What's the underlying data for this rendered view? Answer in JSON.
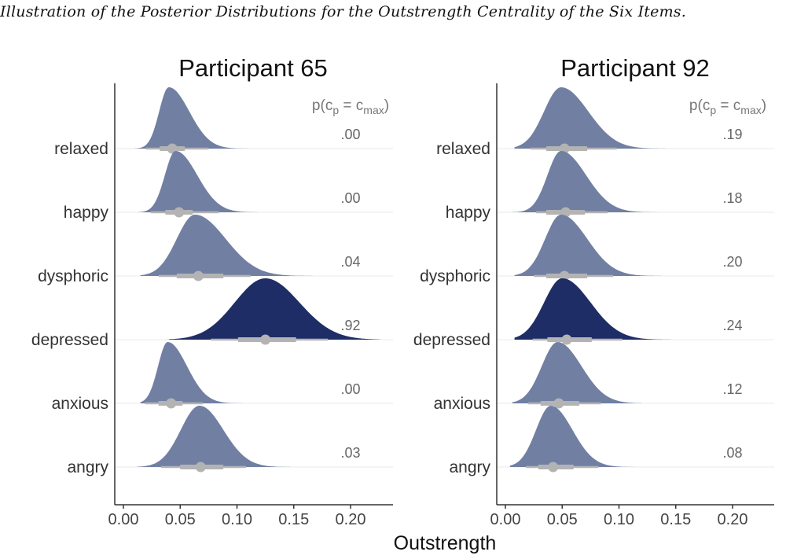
{
  "caption": "Illustration of the Posterior Distributions for the Outstrength Centrality of the Six Items.",
  "colors": {
    "normal": "#717fa3",
    "highlight": "#1f2d67",
    "interval": "#b3b3b3",
    "grid": "#e8e8e8",
    "axis": "#333333"
  },
  "chart_data": [
    {
      "type": "ridgeline",
      "title": "Participant 65",
      "prob_header": "p(c_p = c_max)",
      "xlabel": "Outstrength",
      "xlim": [
        -0.005,
        0.245
      ],
      "xticks": [
        "0.00",
        "0.05",
        "0.10",
        "0.15",
        "0.20"
      ],
      "items": [
        {
          "name": "relaxed",
          "mode": 0.04,
          "sdl": 0.0085,
          "sdr": 0.018,
          "lo": 0.01,
          "hi": 0.115,
          "point": 0.043,
          "q66": [
            0.032,
            0.054
          ],
          "q95": [
            0.02,
            0.075
          ],
          "prob": ".00",
          "highlight": false
        },
        {
          "name": "happy",
          "mode": 0.046,
          "sdl": 0.0095,
          "sdr": 0.019,
          "lo": 0.013,
          "hi": 0.118,
          "point": 0.049,
          "q66": [
            0.037,
            0.061
          ],
          "q95": [
            0.024,
            0.084
          ],
          "prob": ".00",
          "highlight": false
        },
        {
          "name": "dysphoric",
          "mode": 0.063,
          "sdl": 0.016,
          "sdr": 0.027,
          "lo": 0.015,
          "hi": 0.17,
          "point": 0.066,
          "q66": [
            0.047,
            0.088
          ],
          "q95": [
            0.031,
            0.112
          ],
          "prob": ".04",
          "highlight": false
        },
        {
          "name": "depressed",
          "mode": 0.125,
          "sdl": 0.027,
          "sdr": 0.03,
          "lo": 0.04,
          "hi": 0.226,
          "point": 0.125,
          "q66": [
            0.101,
            0.152
          ],
          "q95": [
            0.077,
            0.18
          ],
          "prob": ".92",
          "highlight": true
        },
        {
          "name": "anxious",
          "mode": 0.039,
          "sdl": 0.0085,
          "sdr": 0.017,
          "lo": 0.015,
          "hi": 0.112,
          "point": 0.042,
          "q66": [
            0.031,
            0.052
          ],
          "q95": [
            0.019,
            0.07
          ],
          "prob": ".00",
          "highlight": false
        },
        {
          "name": "angry",
          "mode": 0.067,
          "sdl": 0.0165,
          "sdr": 0.021,
          "lo": 0.012,
          "hi": 0.15,
          "point": 0.068,
          "q66": [
            0.05,
            0.088
          ],
          "q95": [
            0.033,
            0.108
          ],
          "prob": ".03",
          "highlight": false
        }
      ]
    },
    {
      "type": "ridgeline",
      "title": "Participant 92",
      "prob_header": "p(c_p = c_max)",
      "xlabel": "Outstrength",
      "xlim": [
        -0.005,
        0.245
      ],
      "xticks": [
        "0.00",
        "0.05",
        "0.10",
        "0.15",
        "0.20"
      ],
      "items": [
        {
          "name": "relaxed",
          "mode": 0.049,
          "sdl": 0.015,
          "sdr": 0.024,
          "lo": 0.008,
          "hi": 0.15,
          "point": 0.052,
          "q66": [
            0.036,
            0.072
          ],
          "q95": [
            0.022,
            0.098
          ],
          "prob": ".19",
          "highlight": false
        },
        {
          "name": "happy",
          "mode": 0.049,
          "sdl": 0.012,
          "sdr": 0.022,
          "lo": 0.006,
          "hi": 0.135,
          "point": 0.053,
          "q66": [
            0.036,
            0.07
          ],
          "q95": [
            0.027,
            0.09
          ],
          "prob": ".18",
          "highlight": false
        },
        {
          "name": "dysphoric",
          "mode": 0.049,
          "sdl": 0.014,
          "sdr": 0.023,
          "lo": 0.008,
          "hi": 0.14,
          "point": 0.052,
          "q66": [
            0.036,
            0.072
          ],
          "q95": [
            0.025,
            0.095
          ],
          "prob": ".20",
          "highlight": false
        },
        {
          "name": "depressed",
          "mode": 0.05,
          "sdl": 0.016,
          "sdr": 0.025,
          "lo": 0.008,
          "hi": 0.16,
          "point": 0.054,
          "q66": [
            0.037,
            0.076
          ],
          "q95": [
            0.024,
            0.103
          ],
          "prob": ".24",
          "highlight": true
        },
        {
          "name": "anxious",
          "mode": 0.046,
          "sdl": 0.014,
          "sdr": 0.021,
          "lo": 0.006,
          "hi": 0.12,
          "point": 0.047,
          "q66": [
            0.031,
            0.065
          ],
          "q95": [
            0.02,
            0.084
          ],
          "prob": ".12",
          "highlight": false
        },
        {
          "name": "angry",
          "mode": 0.04,
          "sdl": 0.013,
          "sdr": 0.019,
          "lo": 0.004,
          "hi": 0.12,
          "point": 0.042,
          "q66": [
            0.029,
            0.06
          ],
          "q95": [
            0.018,
            0.082
          ],
          "prob": ".08",
          "highlight": false
        }
      ]
    }
  ]
}
